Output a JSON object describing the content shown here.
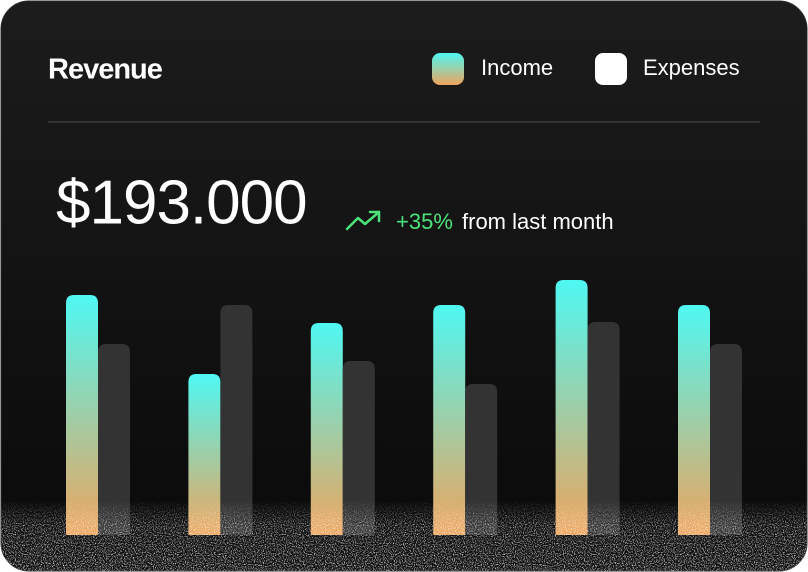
{
  "chart_data": {
    "type": "bar",
    "title": "Revenue",
    "total": "$193.000",
    "change": "+35%",
    "change_text": "from last month",
    "change_color": "#4be37a",
    "categories": [
      null,
      null,
      null,
      null,
      null,
      null
    ],
    "series": [
      {
        "name": "Income",
        "color": [
          "#4ff8f3",
          "#eda45c"
        ],
        "values": [
          240,
          161,
          212,
          230,
          255,
          230
        ]
      },
      {
        "name": "Expenses",
        "color": "#333333",
        "values": [
          191,
          230,
          174,
          151,
          213,
          191
        ]
      }
    ],
    "ylim": [
      0,
      260
    ]
  }
}
